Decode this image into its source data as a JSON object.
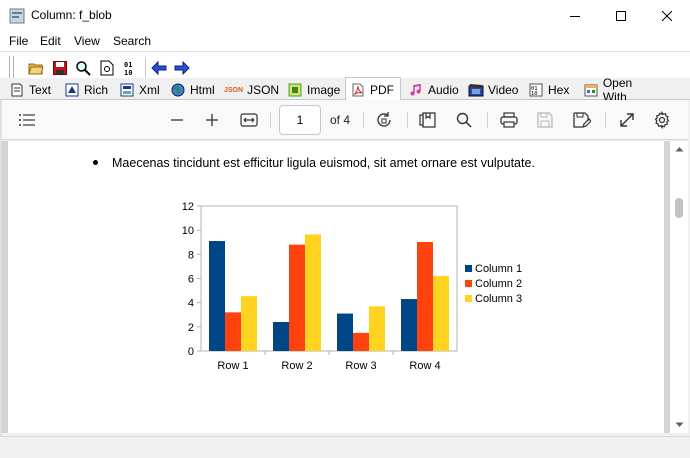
{
  "window": {
    "title": "Column: f_blob"
  },
  "menu": [
    "File",
    "Edit",
    "View",
    "Search"
  ],
  "toolbar": {
    "icons": [
      "open-folder-icon",
      "save-icon",
      "find-icon",
      "page-icon",
      "binary-icon",
      "arrow-left-icon",
      "arrow-right-icon"
    ]
  },
  "tabs": [
    {
      "label": "Text",
      "icon": "text-icon"
    },
    {
      "label": "Rich",
      "icon": "rich-text-icon"
    },
    {
      "label": "Xml",
      "icon": "xml-icon"
    },
    {
      "label": "Html",
      "icon": "globe-icon"
    },
    {
      "label": "JSON",
      "icon": "json-icon",
      "badge": "JSON"
    },
    {
      "label": "Image",
      "icon": "image-icon"
    },
    {
      "label": "PDF",
      "icon": "pdf-icon",
      "active": true
    },
    {
      "label": "Audio",
      "icon": "music-note-icon"
    },
    {
      "label": "Video",
      "icon": "film-icon"
    },
    {
      "label": "Hex",
      "icon": "hex-icon"
    },
    {
      "label": "Open With",
      "icon": "open-with-icon"
    }
  ],
  "pdf_toolbar": {
    "page_number": "1",
    "page_count_label": "of 4"
  },
  "document": {
    "bullet_text": "Maecenas tincidunt est efficitur ligula euismod, sit amet ornare est vulputate."
  },
  "chart_data": {
    "type": "bar",
    "categories": [
      "Row 1",
      "Row 2",
      "Row 3",
      "Row 4"
    ],
    "series": [
      {
        "name": "Column 1",
        "color": "#004586",
        "values": [
          9.1,
          2.4,
          3.1,
          4.3
        ]
      },
      {
        "name": "Column 2",
        "color": "#ff420e",
        "values": [
          3.2,
          8.8,
          1.5,
          9.02
        ]
      },
      {
        "name": "Column 3",
        "color": "#ffd320",
        "values": [
          4.54,
          9.65,
          3.7,
          6.2
        ]
      }
    ],
    "yticks": [
      "0",
      "2",
      "4",
      "6",
      "8",
      "10",
      "12"
    ],
    "ylim": [
      0,
      12
    ],
    "legend": "right",
    "grid": false
  }
}
